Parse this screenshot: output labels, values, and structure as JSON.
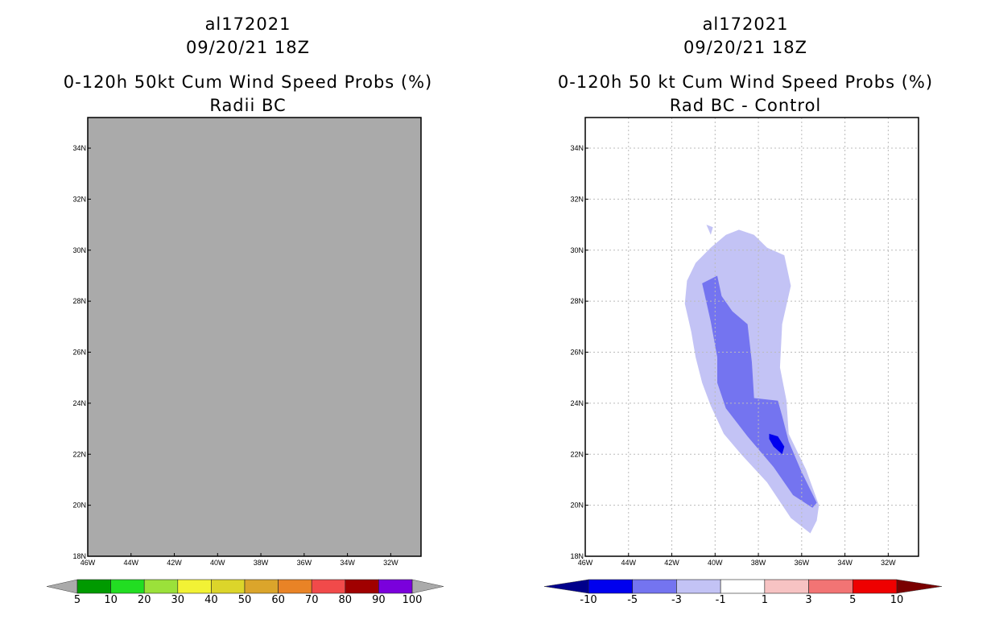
{
  "colors": {
    "land": "#aaaaaa",
    "grid": "#bbbbbb",
    "c_neg3_neg1": "#c3c3f5",
    "c_neg5_neg3": "#7474f0",
    "c_neg10_neg5": "#0000ee"
  },
  "left": {
    "title1": "al172021",
    "title2": "09/20/21 18Z",
    "title3": "0-120h 50kt Cum Wind Speed Probs (%)",
    "title4": "Radii BC"
  },
  "right": {
    "title1": "al172021",
    "title2": "09/20/21 18Z",
    "title3": "0-120h 50 kt Cum Wind Speed Probs (%)",
    "title4": "Rad BC - Control"
  },
  "chart_data": [
    {
      "type": "heatmap",
      "title": "0-120h 50kt Cum Wind Speed Probs (%) Radii BC",
      "xlim": [
        -46,
        -30.6
      ],
      "ylim": [
        18,
        35.2
      ],
      "x_ticks": [
        "46W",
        "44W",
        "42W",
        "40W",
        "38W",
        "36W",
        "34W",
        "32W"
      ],
      "y_ticks": [
        "18N",
        "20N",
        "22N",
        "24N",
        "26N",
        "28N",
        "30N",
        "32N",
        "34N"
      ],
      "grid": false,
      "colorbar": {
        "levels": [
          "5",
          "10",
          "20",
          "30",
          "40",
          "50",
          "60",
          "70",
          "80",
          "90",
          "100"
        ],
        "colors": [
          "#009a00",
          "#22dd22",
          "#9be13a",
          "#f2f235",
          "#dcd52a",
          "#dba52b",
          "#e98326",
          "#f14a4a",
          "#a00000",
          "#7a00dc"
        ],
        "extension_color": "#aaaaaa"
      },
      "field": "no probabilities plotted"
    },
    {
      "type": "heatmap",
      "title": "0-120h 50 kt Cum Wind Speed Probs (%) Rad BC - Control",
      "xlim": [
        -46,
        -30.6
      ],
      "ylim": [
        18,
        35.2
      ],
      "x_ticks": [
        "46W",
        "44W",
        "42W",
        "40W",
        "38W",
        "36W",
        "34W",
        "32W"
      ],
      "y_ticks": [
        "18N",
        "20N",
        "22N",
        "24N",
        "26N",
        "28N",
        "30N",
        "32N",
        "34N"
      ],
      "grid": true,
      "colorbar": {
        "levels": [
          "-10",
          "-5",
          "-3",
          "-1",
          "1",
          "3",
          "5",
          "10"
        ],
        "colors": [
          "#0000ee",
          "#7474f0",
          "#c3c3f5",
          "#ffffff",
          "#f7c3c3",
          "#f27474",
          "#ee0000"
        ],
        "low_extension": "#00008b",
        "high_extension": "#7a0000"
      },
      "contours": [
        {
          "range": "-3 to -1",
          "points": [
            [
              -41.4,
              27.9
            ],
            [
              -41.3,
              28.8
            ],
            [
              -40.9,
              29.5
            ],
            [
              -40.2,
              30.1
            ],
            [
              -39.5,
              30.6
            ],
            [
              -38.9,
              30.8
            ],
            [
              -38.2,
              30.6
            ],
            [
              -37.6,
              30.1
            ],
            [
              -36.8,
              29.8
            ],
            [
              -36.5,
              28.6
            ],
            [
              -36.9,
              27.1
            ],
            [
              -37.0,
              25.4
            ],
            [
              -36.7,
              24.1
            ],
            [
              -36.6,
              22.8
            ],
            [
              -35.8,
              21.4
            ],
            [
              -35.2,
              20.0
            ],
            [
              -35.3,
              19.4
            ],
            [
              -35.6,
              18.9
            ],
            [
              -36.5,
              19.5
            ],
            [
              -37.6,
              20.9
            ],
            [
              -38.8,
              22.0
            ],
            [
              -39.6,
              22.8
            ],
            [
              -40.2,
              23.9
            ],
            [
              -40.6,
              24.8
            ],
            [
              -40.9,
              25.8
            ],
            [
              -41.1,
              26.8
            ]
          ]
        },
        {
          "range": "-5 to -3",
          "points": [
            [
              -39.9,
              29.0
            ],
            [
              -39.7,
              28.2
            ],
            [
              -39.2,
              27.6
            ],
            [
              -38.5,
              27.1
            ],
            [
              -38.3,
              25.6
            ],
            [
              -38.2,
              24.2
            ],
            [
              -37.1,
              24.1
            ],
            [
              -36.9,
              23.5
            ],
            [
              -36.6,
              22.5
            ],
            [
              -36.0,
              21.3
            ],
            [
              -35.3,
              20.1
            ],
            [
              -35.5,
              19.9
            ],
            [
              -36.4,
              20.4
            ],
            [
              -37.3,
              21.5
            ],
            [
              -38.5,
              22.7
            ],
            [
              -39.5,
              23.8
            ],
            [
              -39.9,
              24.8
            ],
            [
              -39.9,
              25.8
            ],
            [
              -40.2,
              27.2
            ],
            [
              -40.6,
              28.7
            ]
          ]
        },
        {
          "range": "-10 to -5",
          "points": [
            [
              -37.5,
              22.8
            ],
            [
              -37.1,
              22.7
            ],
            [
              -36.8,
              22.3
            ],
            [
              -36.9,
              22.0
            ],
            [
              -37.3,
              22.3
            ],
            [
              -37.5,
              22.6
            ]
          ]
        },
        {
          "range": "-3 to -1",
          "points": [
            [
              -40.4,
              31.0
            ],
            [
              -40.1,
              30.9
            ],
            [
              -40.2,
              30.6
            ],
            [
              -40.3,
              30.8
            ]
          ]
        }
      ]
    }
  ]
}
